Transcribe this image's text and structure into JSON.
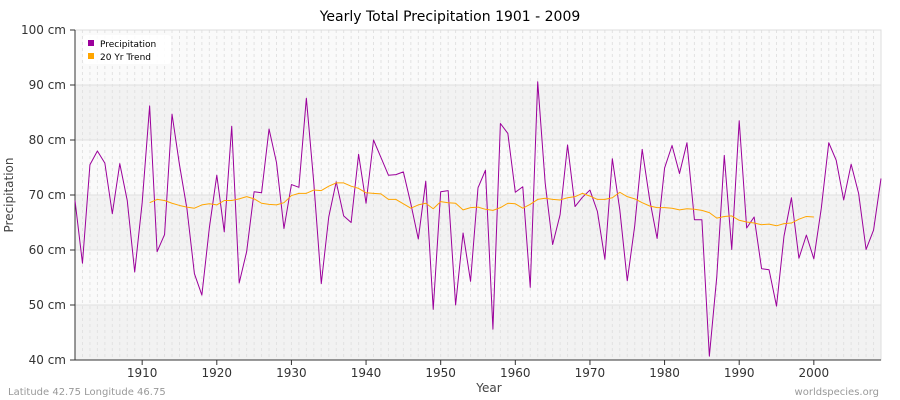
{
  "chart_data": {
    "type": "line",
    "title": "Yearly Total Precipitation 1901 - 2009",
    "xlabel": "Year",
    "ylabel": "Precipitation",
    "xlim": [
      1901,
      2009
    ],
    "ylim": [
      40,
      100
    ],
    "x_ticks": [
      1910,
      1920,
      1930,
      1940,
      1950,
      1960,
      1970,
      1980,
      1990,
      2000
    ],
    "y_ticks": [
      40,
      50,
      60,
      70,
      80,
      90,
      100
    ],
    "y_tick_labels": [
      "40 cm",
      "50 cm",
      "60 cm",
      "70 cm",
      "80 cm",
      "90 cm",
      "100 cm"
    ],
    "legend_position": "top-left",
    "series": [
      {
        "name": "Precipitation",
        "color": "#9b009b",
        "x_start": 1901,
        "values": [
          69,
          57.6,
          75.5,
          78,
          75.8,
          66.6,
          75.7,
          69,
          56,
          68.6,
          86.2,
          59.7,
          62.8,
          84.7,
          75.5,
          67.5,
          55.7,
          51.8,
          64,
          73.6,
          63.3,
          82.5,
          54,
          59.7,
          70.6,
          70.4,
          82,
          75.9,
          63.9,
          71.9,
          71.4,
          87.6,
          72.2,
          53.9,
          66,
          72.4,
          66.2,
          65,
          77.4,
          68.5,
          80,
          76.8,
          73.6,
          73.7,
          74.2,
          68.4,
          62,
          72.5,
          49.2,
          70.6,
          70.8,
          50,
          63.1,
          54.3,
          71.3,
          74.5,
          45.6,
          83,
          81.2,
          70.5,
          71.5,
          53.2,
          90.6,
          72.2,
          61,
          66.4,
          79.1,
          67.9,
          69.6,
          70.9,
          67,
          58.3,
          76.6,
          67.3,
          54.4,
          64.4,
          78.3,
          69.2,
          62.1,
          74.9,
          79,
          73.9,
          79.5,
          65.5,
          65.5,
          40.7,
          55.2,
          77.2,
          60.1,
          83.5,
          64,
          66,
          56.6,
          56.4,
          49.8,
          62.5,
          69.5,
          58.5,
          62.7,
          58.4,
          67.6,
          79.5,
          76.3,
          69.1,
          75.6,
          70.3,
          60.1,
          63.6,
          73
        ]
      },
      {
        "name": "20 Yr Trend",
        "color": "#ffa500",
        "x_start": 1911,
        "values": [
          68.6,
          69.2,
          69,
          68.5,
          68.1,
          67.8,
          67.6,
          68.2,
          68.4,
          68.2,
          69,
          69,
          69.3,
          69.7,
          69.3,
          68.5,
          68.3,
          68.2,
          68.6,
          69.9,
          70.3,
          70.3,
          70.9,
          70.8,
          71.6,
          72.2,
          72.2,
          71.6,
          71.2,
          70.4,
          70.3,
          70.2,
          69.2,
          69.2,
          68.4,
          67.6,
          68.2,
          68.5,
          67.5,
          68.8,
          68.6,
          68.5,
          67.3,
          67.7,
          67.8,
          67.4,
          67.2,
          67.7,
          68.5,
          68.4,
          67.6,
          68.3,
          69.2,
          69.4,
          69.2,
          69.1,
          69.5,
          69.7,
          70.3,
          69.8,
          69.2,
          69.2,
          69.5,
          70.5,
          69.7,
          69.3,
          68.6,
          68,
          67.7,
          67.7,
          67.6,
          67.3,
          67.5,
          67.4,
          67.2,
          66.8,
          65.8,
          66.1,
          66.2,
          65.4,
          65.1,
          64.9,
          64.6,
          64.7,
          64.4,
          64.8,
          64.9,
          65.6,
          66.1,
          66.0
        ]
      }
    ]
  },
  "legend": {
    "items": [
      {
        "label": "Precipitation",
        "color": "#9b009b"
      },
      {
        "label": "20 Yr Trend",
        "color": "#ffa500"
      }
    ]
  },
  "footer": {
    "location": "Latitude 42.75 Longitude 46.75",
    "source": "worldspecies.org"
  }
}
